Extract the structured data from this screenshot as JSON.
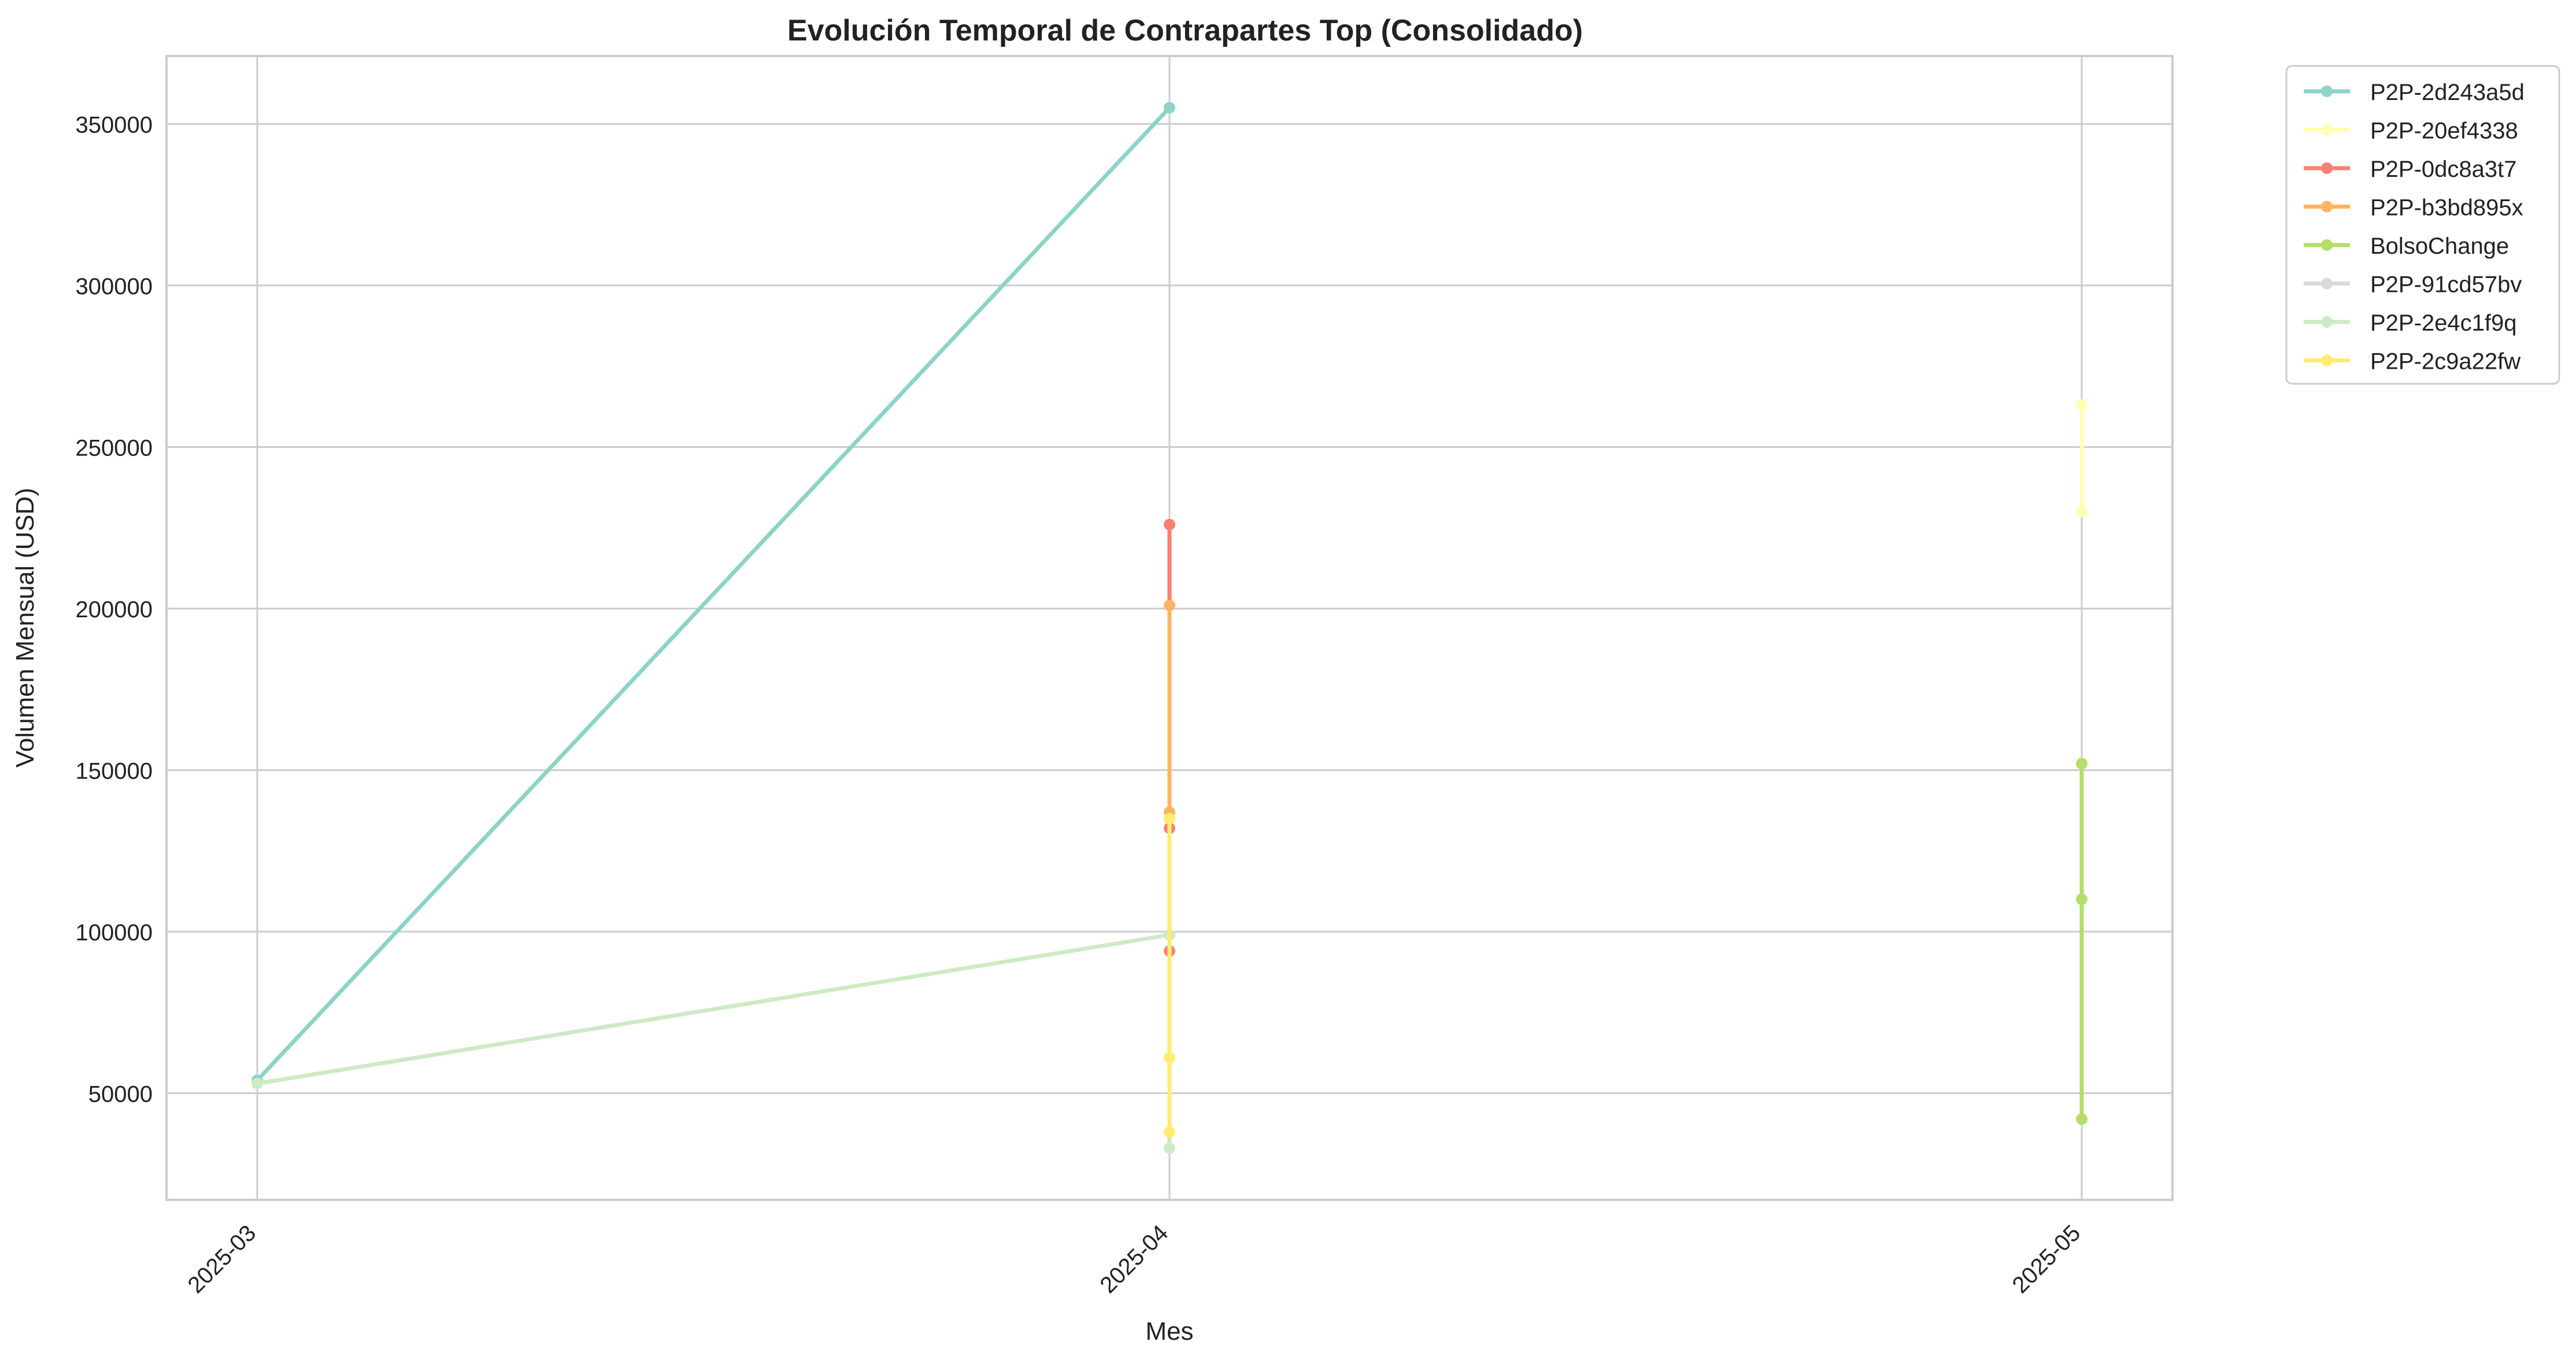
{
  "chart_data": {
    "type": "line",
    "title": "Evolución Temporal de Contrapartes Top (Consolidado)",
    "xlabel": "Mes",
    "ylabel": "Volumen Mensual (USD)",
    "categories": [
      "2025-03",
      "2025-04",
      "2025-05"
    ],
    "ylim": [
      17000,
      371000
    ],
    "yticks": [
      50000,
      100000,
      150000,
      200000,
      250000,
      300000,
      350000
    ],
    "ytick_labels": [
      "50000",
      "100000",
      "150000",
      "200000",
      "250000",
      "300000",
      "350000"
    ],
    "grid": true,
    "legend_position": "outside-top-right",
    "series": [
      {
        "name": "P2P-2d243a5d",
        "color": "#8dd3c7",
        "points": [
          {
            "x": "2025-03",
            "y": 54000
          },
          {
            "x": "2025-04",
            "y": 355000
          }
        ]
      },
      {
        "name": "P2P-20ef4338",
        "color": "#ffffb3",
        "points": [
          {
            "x": "2025-05",
            "y": 263000
          },
          {
            "x": "2025-05",
            "y": 230000
          }
        ]
      },
      {
        "name": "P2P-0dc8a3t7",
        "color": "#fb8072",
        "points": [
          {
            "x": "2025-04",
            "y": 226000
          },
          {
            "x": "2025-04",
            "y": 132000
          },
          {
            "x": "2025-04",
            "y": 94000
          }
        ]
      },
      {
        "name": "P2P-b3bd895x",
        "color": "#fdb462",
        "points": [
          {
            "x": "2025-04",
            "y": 201000
          },
          {
            "x": "2025-04",
            "y": 137000
          }
        ]
      },
      {
        "name": "BolsoChange",
        "color": "#b3de69",
        "points": [
          {
            "x": "2025-05",
            "y": 152000
          },
          {
            "x": "2025-05",
            "y": 110000
          },
          {
            "x": "2025-05",
            "y": 42000
          }
        ]
      },
      {
        "name": "P2P-91cd57bv",
        "color": "#d9d9d9",
        "points": []
      },
      {
        "name": "P2P-2e4c1f9q",
        "color": "#ccebc5",
        "points": [
          {
            "x": "2025-03",
            "y": 53000
          },
          {
            "x": "2025-04",
            "y": 99000
          },
          {
            "x": "2025-04",
            "y": 33000
          }
        ]
      },
      {
        "name": "P2P-2c9a22fw",
        "color": "#ffed6f",
        "points": [
          {
            "x": "2025-04",
            "y": 135000
          },
          {
            "x": "2025-04",
            "y": 61000
          },
          {
            "x": "2025-04",
            "y": 38000
          }
        ]
      }
    ]
  }
}
